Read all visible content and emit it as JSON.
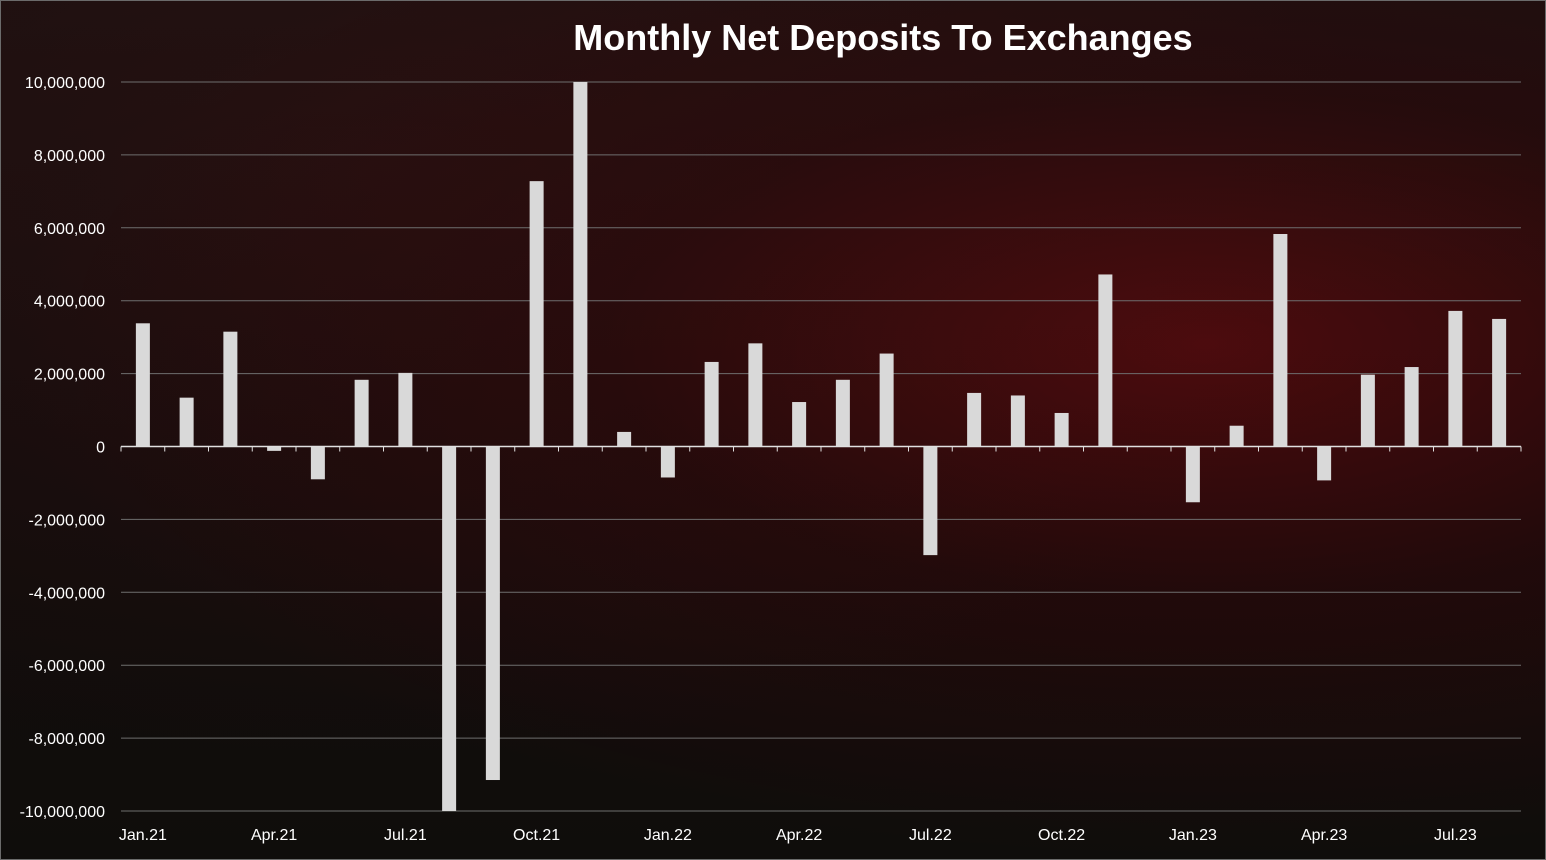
{
  "chart_data": {
    "type": "bar",
    "title": "Monthly Net Deposits To Exchanges",
    "xlabel": "",
    "ylabel": "",
    "ylim": [
      -10000000,
      10000000
    ],
    "yticks": [
      10000000,
      8000000,
      6000000,
      4000000,
      2000000,
      0,
      -2000000,
      -4000000,
      -6000000,
      -8000000,
      -10000000
    ],
    "ytick_labels": [
      "10,000,000",
      "8,000,000",
      "6,000,000",
      "4,000,000",
      "2,000,000",
      "0",
      "-2,000,000",
      "-4,000,000",
      "-6,000,000",
      "-8,000,000",
      "-10,000,000"
    ],
    "grid": true,
    "legend": "none",
    "bar_color": "#d9d9d9",
    "categories": [
      "Jan.21",
      "Feb.21",
      "Mar.21",
      "Apr.21",
      "May.21",
      "Jun.21",
      "Jul.21",
      "Aug.21",
      "Sep.21",
      "Oct.21",
      "Nov.21",
      "Dec.21",
      "Jan.22",
      "Feb.22",
      "Mar.22",
      "Apr.22",
      "May.22",
      "Jun.22",
      "Jul.22",
      "Aug.22",
      "Sep.22",
      "Oct.22",
      "Nov.22",
      "Dec.22",
      "Jan.23",
      "Feb.23",
      "Mar.23",
      "Apr.23",
      "May.23",
      "Jun.23",
      "Jul.23",
      "Aug.23"
    ],
    "xtick_labels": [
      "Jan.21",
      "",
      "",
      "Apr.21",
      "",
      "",
      "Jul.21",
      "",
      "",
      "Oct.21",
      "",
      "",
      "Jan.22",
      "",
      "",
      "Apr.22",
      "",
      "",
      "Jul.22",
      "",
      "",
      "Oct.22",
      "",
      "",
      "Jan.23",
      "",
      "",
      "Apr.23",
      "",
      "",
      "Jul.23",
      ""
    ],
    "values": [
      3380000,
      1340000,
      3150000,
      -120000,
      -900000,
      1830000,
      2020000,
      -10000000,
      -9150000,
      7280000,
      10000000,
      400000,
      -850000,
      2320000,
      2830000,
      1220000,
      1830000,
      2550000,
      -2980000,
      1470000,
      1400000,
      920000,
      4720000,
      0,
      -1530000,
      570000,
      5830000,
      -930000,
      1970000,
      2180000,
      3720000,
      3500000
    ]
  }
}
